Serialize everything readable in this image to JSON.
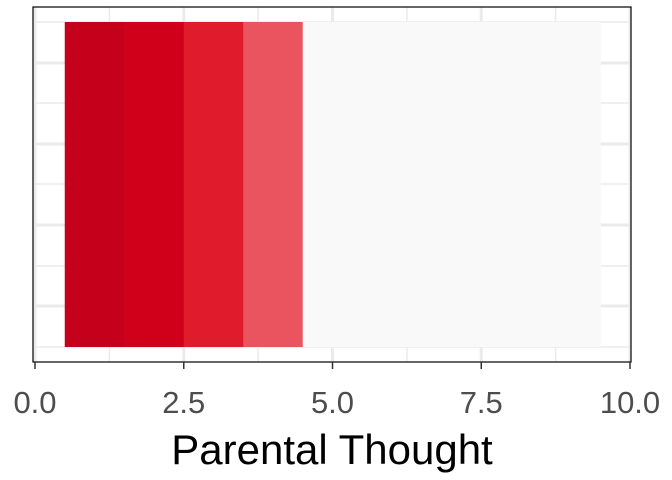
{
  "chart_data": {
    "type": "heatmap",
    "xlabel": "Parental Thought",
    "ylabel": "",
    "title": "",
    "xlim": [
      0,
      10
    ],
    "x_ticks": [
      "0.0",
      "2.5",
      "5.0",
      "7.5",
      "10.0"
    ],
    "x_tick_values": [
      0,
      2.5,
      5,
      7.5,
      10
    ],
    "cells": [
      {
        "x": 1,
        "color": "#c4001a"
      },
      {
        "x": 2,
        "color": "#d0001a"
      },
      {
        "x": 3,
        "color": "#e01b2c"
      },
      {
        "x": 4,
        "color": "#ea545e"
      },
      {
        "x": 5,
        "color": "#f9f9f9"
      },
      {
        "x": 6,
        "color": "#f9f9f9"
      },
      {
        "x": 7,
        "color": "#f9f9f9"
      },
      {
        "x": 8,
        "color": "#f9f9f9"
      },
      {
        "x": 9,
        "color": "#f9f9f9"
      }
    ],
    "cell_width": 1,
    "grid": true,
    "legend": "none"
  }
}
